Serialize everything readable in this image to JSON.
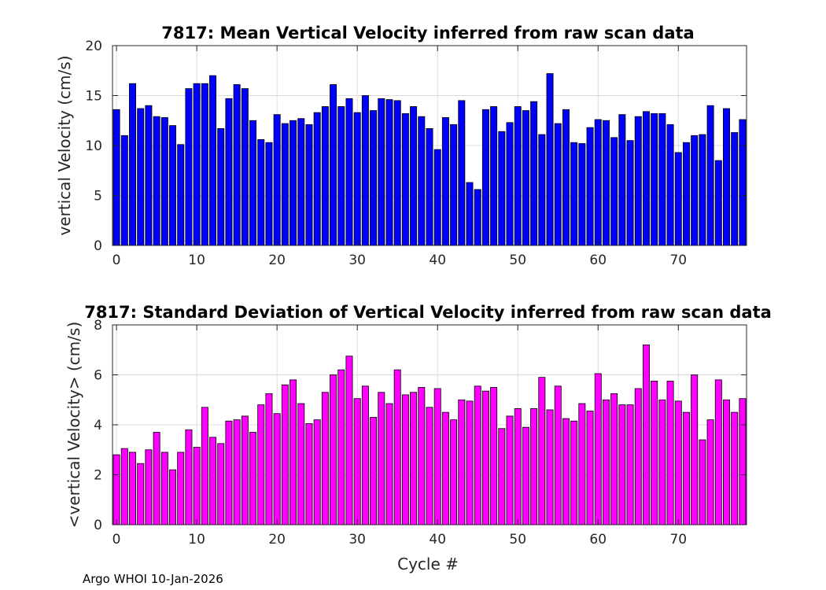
{
  "footer": "Argo WHOI 10-Jan-2026",
  "chart_data": [
    {
      "type": "bar",
      "title": "7817: Mean Vertical Velocity inferred from raw scan data",
      "xlabel": "",
      "ylabel": "vertical Velocity (cm/s)",
      "ylim": [
        0,
        20
      ],
      "xlim": [
        -0.5,
        78.5
      ],
      "yticks": [
        0,
        5,
        10,
        15,
        20
      ],
      "xticks": [
        0,
        10,
        20,
        30,
        40,
        50,
        60,
        70
      ],
      "grid": true,
      "color": "#0000ff",
      "x_start": 0,
      "values": [
        13.6,
        11.0,
        16.2,
        13.7,
        14.0,
        12.9,
        12.8,
        12.0,
        10.1,
        15.7,
        16.2,
        16.2,
        17.0,
        11.7,
        14.7,
        16.1,
        15.7,
        12.5,
        10.6,
        10.3,
        13.1,
        12.2,
        12.5,
        12.7,
        12.1,
        13.3,
        13.9,
        16.1,
        13.9,
        14.7,
        13.3,
        15.0,
        13.5,
        14.7,
        14.6,
        14.5,
        13.2,
        13.9,
        12.9,
        11.7,
        9.6,
        12.8,
        12.1,
        14.5,
        6.3,
        5.6,
        13.6,
        13.9,
        11.4,
        12.3,
        13.9,
        13.5,
        14.4,
        11.1,
        17.2,
        12.2,
        13.6,
        10.3,
        10.2,
        11.8,
        12.6,
        12.5,
        10.8,
        13.1,
        10.5,
        12.9,
        13.4,
        13.2,
        13.2,
        12.1,
        9.3,
        10.3,
        11.0,
        11.1,
        14.0,
        8.5,
        13.7,
        11.3,
        12.6
      ]
    },
    {
      "type": "bar",
      "title": "7817: Standard Deviation of Vertical Velocity inferred from raw scan data",
      "xlabel": "Cycle #",
      "ylabel": "<vertical Velocity> (cm/s)",
      "ylim": [
        0,
        8
      ],
      "xlim": [
        -0.5,
        78.5
      ],
      "yticks": [
        0,
        2,
        4,
        6,
        8
      ],
      "xticks": [
        0,
        10,
        20,
        30,
        40,
        50,
        60,
        70
      ],
      "grid": true,
      "color": "#ff00ff",
      "x_start": 0,
      "values": [
        2.8,
        3.05,
        2.9,
        2.45,
        3.0,
        3.7,
        2.9,
        2.2,
        2.9,
        3.8,
        3.1,
        4.7,
        3.5,
        3.25,
        4.15,
        4.2,
        4.35,
        3.7,
        4.8,
        5.25,
        4.45,
        5.6,
        5.8,
        4.85,
        4.05,
        4.2,
        5.3,
        6.0,
        6.2,
        6.75,
        5.05,
        5.55,
        4.3,
        5.3,
        4.85,
        6.2,
        5.2,
        5.3,
        5.5,
        4.7,
        5.45,
        4.5,
        4.2,
        5.0,
        4.95,
        5.55,
        5.35,
        5.5,
        3.85,
        4.35,
        4.65,
        3.9,
        4.65,
        5.9,
        4.6,
        5.55,
        4.25,
        4.15,
        4.85,
        4.55,
        6.05,
        5.0,
        5.25,
        4.8,
        4.8,
        5.45,
        7.2,
        5.75,
        5.0,
        5.75,
        4.95,
        4.5,
        6.0,
        3.4,
        4.2,
        5.8,
        5.0,
        4.5,
        5.05
      ]
    }
  ]
}
